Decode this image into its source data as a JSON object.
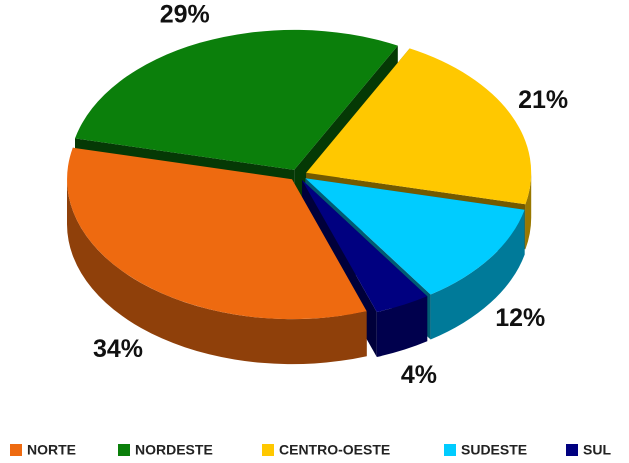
{
  "chart_data": {
    "type": "pie",
    "categories": [
      "NORTE",
      "NORDESTE",
      "CENTRO-OESTE",
      "SUDESTE",
      "SUL"
    ],
    "values": [
      34,
      29,
      21,
      12,
      4
    ],
    "value_labels": [
      "34%",
      "29%",
      "21%",
      "12%",
      "4%"
    ],
    "colors": [
      "#ee6a10",
      "#0b7f0b",
      "#ffc800",
      "#00ccff",
      "#000080"
    ],
    "legend": "bottom"
  }
}
